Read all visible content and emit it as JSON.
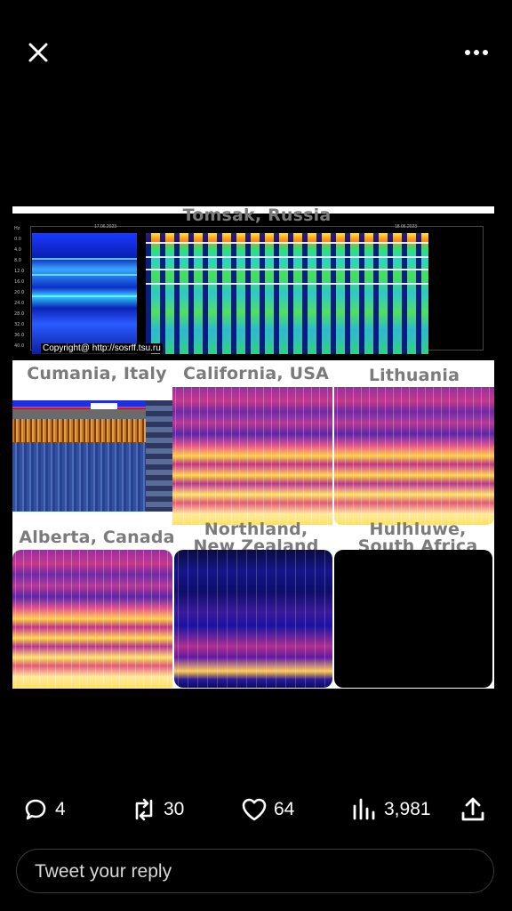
{
  "topbar": {
    "close_icon": "close-icon",
    "more_icon": "more-horizontal-icon"
  },
  "media": {
    "labels": {
      "tomsk": "Tomsak, Russia",
      "cumania": "Cumania, Italy",
      "california": "California, USA",
      "lithuania": "Lithuania",
      "alberta": "Alberta, Canada",
      "northland": "Northland, New Zealand",
      "hluhluwe": "Hulhluwe, South Africa"
    },
    "tomsk_chart": {
      "copyright": "Copyright@ http://sosrff.tsu.ru",
      "date_left": "17.06.2023",
      "date_right": "18.06.2023",
      "yticks": [
        "Hz",
        "0.0",
        "4.0",
        "8.0",
        "12.0",
        "16.0",
        "20.0",
        "24.0",
        "28.0",
        "32.0",
        "36.0",
        "40.0"
      ]
    }
  },
  "actions": {
    "replies": {
      "count": "4",
      "icon": "reply-icon"
    },
    "retweets": {
      "count": "30",
      "icon": "retweet-icon"
    },
    "likes": {
      "count": "64",
      "icon": "heart-icon"
    },
    "views": {
      "count": "3,981",
      "icon": "views-icon"
    },
    "share": {
      "icon": "share-icon"
    }
  },
  "reply": {
    "placeholder": "Tweet your reply"
  },
  "colors": {
    "background": "#000000",
    "text": "#ffffff",
    "label_gray": "#7b7b7b"
  }
}
